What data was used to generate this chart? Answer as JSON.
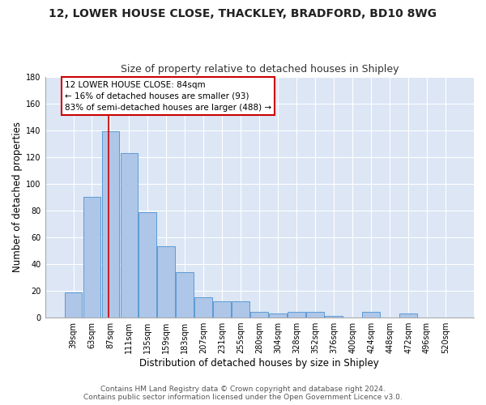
{
  "title1": "12, LOWER HOUSE CLOSE, THACKLEY, BRADFORD, BD10 8WG",
  "title2": "Size of property relative to detached houses in Shipley",
  "xlabel": "Distribution of detached houses by size in Shipley",
  "ylabel": "Number of detached properties",
  "footer1": "Contains HM Land Registry data © Crown copyright and database right 2024.",
  "footer2": "Contains public sector information licensed under the Open Government Licence v3.0.",
  "bar_labels": [
    "39sqm",
    "63sqm",
    "87sqm",
    "111sqm",
    "135sqm",
    "159sqm",
    "183sqm",
    "207sqm",
    "231sqm",
    "255sqm",
    "280sqm",
    "304sqm",
    "328sqm",
    "352sqm",
    "376sqm",
    "400sqm",
    "424sqm",
    "448sqm",
    "472sqm",
    "496sqm",
    "520sqm"
  ],
  "bar_values": [
    19,
    90,
    139,
    123,
    79,
    53,
    34,
    15,
    12,
    12,
    4,
    3,
    4,
    4,
    1,
    0,
    4,
    0,
    3,
    0,
    0
  ],
  "bar_color": "#aec6e8",
  "bar_edge_color": "#5b9bd5",
  "background_color": "#dce6f5",
  "grid_color": "#ffffff",
  "annotation_text": "12 LOWER HOUSE CLOSE: 84sqm\n← 16% of detached houses are smaller (93)\n83% of semi-detached houses are larger (488) →",
  "annotation_box_color": "#ffffff",
  "annotation_border_color": "#cc0000",
  "ylim": [
    0,
    180
  ],
  "yticks": [
    0,
    20,
    40,
    60,
    80,
    100,
    120,
    140,
    160,
    180
  ],
  "title_fontsize": 10,
  "subtitle_fontsize": 9,
  "ylabel_fontsize": 8.5,
  "xlabel_fontsize": 8.5,
  "tick_fontsize": 7,
  "footer_fontsize": 6.5,
  "annotation_fontsize": 7.5
}
